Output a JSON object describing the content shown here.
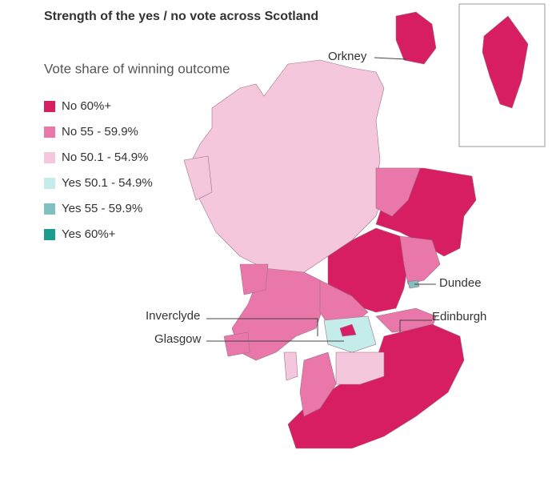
{
  "title": "Strength of the yes / no vote across Scotland",
  "subtitle": "Vote share of winning outcome",
  "legend": [
    {
      "label": "No 60%+",
      "color": "#d81e62"
    },
    {
      "label": "No 55 - 59.9%",
      "color": "#e977a9"
    },
    {
      "label": "No 50.1 - 54.9%",
      "color": "#f5c7dc"
    },
    {
      "label": "Yes 50.1 - 54.9%",
      "color": "#c4ede9"
    },
    {
      "label": "Yes 55 - 59.9%",
      "color": "#80c0c1"
    },
    {
      "label": "Yes 60%+",
      "color": "#1b9d8e"
    }
  ],
  "places": [
    "Orkney",
    "Dundee",
    "Inverclyde",
    "Glasgow",
    "Edinburgh"
  ]
}
